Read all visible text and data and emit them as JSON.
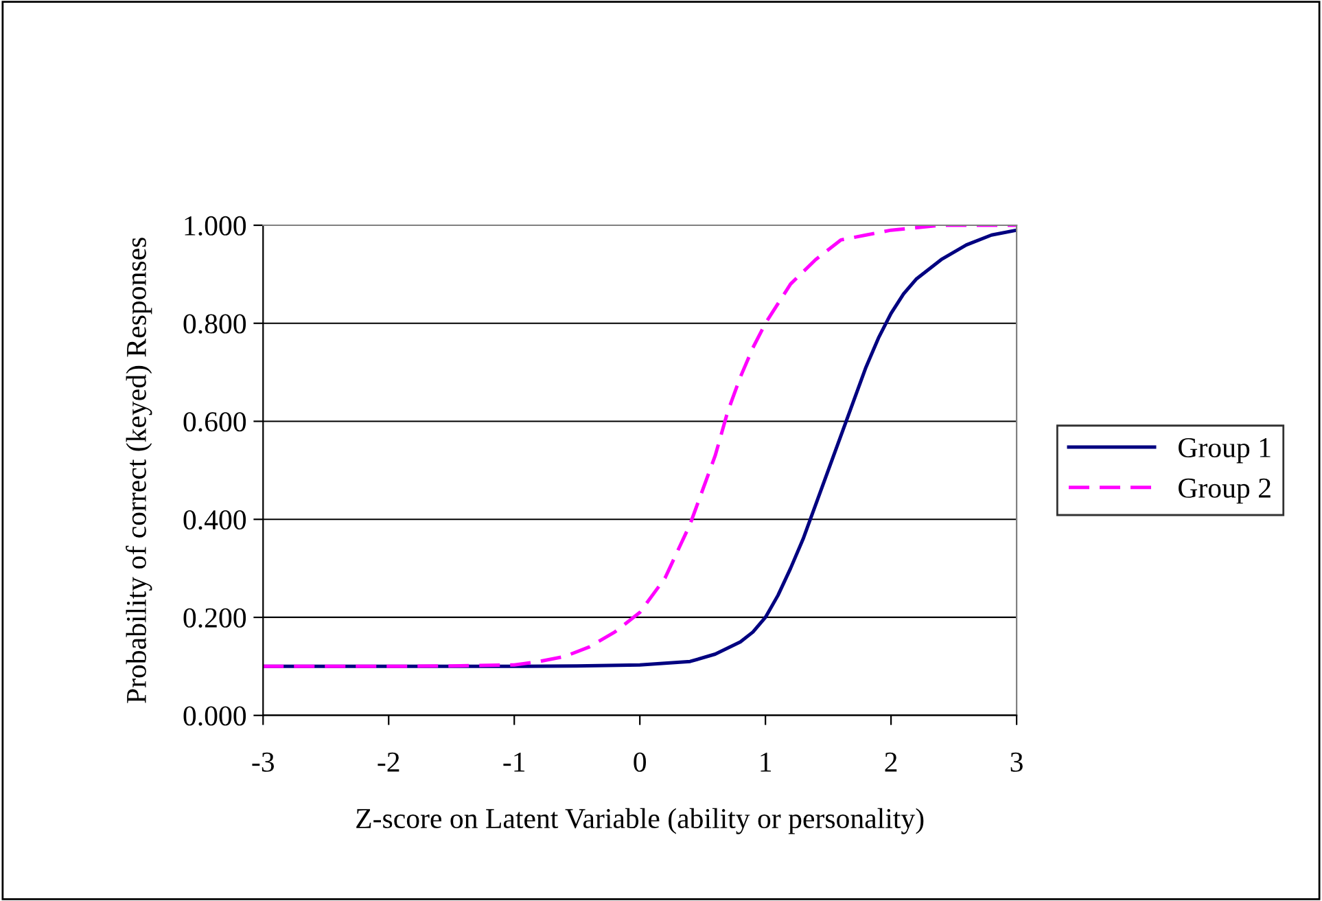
{
  "chart_data": {
    "type": "line",
    "xlabel": "Z-score on Latent Variable (ability or personality)",
    "ylabel": "Probability of correct (keyed) Responses",
    "xlim": [
      -3,
      3
    ],
    "xticks": [
      -3,
      -2,
      -1,
      0,
      1,
      2,
      3
    ],
    "ylim": [
      0,
      1
    ],
    "yticks": [
      {
        "value": 0,
        "label": "0.000"
      },
      {
        "value": 0.2,
        "label": "0.200"
      },
      {
        "value": 0.4,
        "label": "0.400"
      },
      {
        "value": 0.6,
        "label": "0.600"
      },
      {
        "value": 0.8,
        "label": "0.800"
      },
      {
        "value": 1,
        "label": "1.000"
      }
    ],
    "grid": "y",
    "legend": "right",
    "marker": "none",
    "series": [
      {
        "name": "Group 1",
        "color": "#000080",
        "line_style": "solid",
        "x": [
          -3,
          -2,
          -1,
          -0.5,
          0,
          0.4,
          0.6,
          0.8,
          0.9,
          1.0,
          1.1,
          1.2,
          1.3,
          1.4,
          1.5,
          1.6,
          1.7,
          1.8,
          1.9,
          2.0,
          2.1,
          2.2,
          2.4,
          2.6,
          2.8,
          3.0
        ],
        "values": [
          0.1,
          0.1,
          0.1,
          0.101,
          0.103,
          0.11,
          0.125,
          0.15,
          0.17,
          0.2,
          0.245,
          0.3,
          0.36,
          0.43,
          0.5,
          0.57,
          0.64,
          0.71,
          0.77,
          0.82,
          0.86,
          0.89,
          0.93,
          0.96,
          0.98,
          0.99
        ]
      },
      {
        "name": "Group 2",
        "color": "#ff00ff",
        "line_style": "dashed",
        "x": [
          -3,
          -2,
          -1.5,
          -1,
          -0.8,
          -0.6,
          -0.4,
          -0.2,
          0,
          0.2,
          0.4,
          0.5,
          0.6,
          0.7,
          0.8,
          0.9,
          1.0,
          1.2,
          1.4,
          1.6,
          1.8,
          2.0,
          2.4,
          3.0
        ],
        "values": [
          0.1,
          0.1,
          0.101,
          0.103,
          0.11,
          0.12,
          0.14,
          0.17,
          0.21,
          0.28,
          0.39,
          0.46,
          0.53,
          0.62,
          0.69,
          0.75,
          0.8,
          0.88,
          0.93,
          0.97,
          0.98,
          0.99,
          1.0,
          1.0
        ]
      }
    ]
  }
}
